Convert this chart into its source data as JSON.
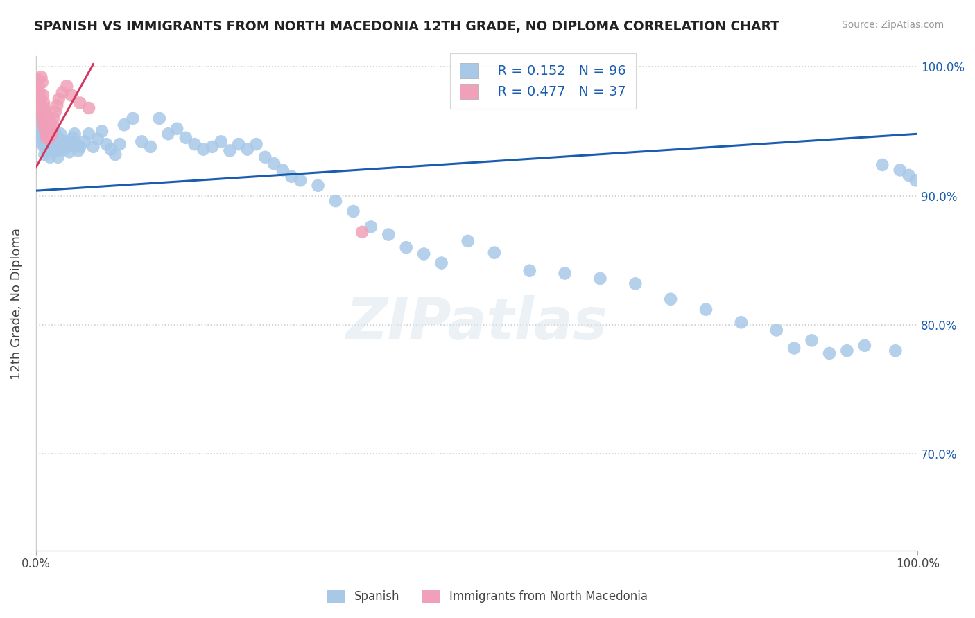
{
  "title": "SPANISH VS IMMIGRANTS FROM NORTH MACEDONIA 12TH GRADE, NO DIPLOMA CORRELATION CHART",
  "source": "Source: ZipAtlas.com",
  "ylabel": "12th Grade, No Diploma",
  "xlim": [
    0.0,
    1.0
  ],
  "ylim": [
    0.625,
    1.008
  ],
  "blue_R": 0.152,
  "blue_N": 96,
  "pink_R": 0.477,
  "pink_N": 37,
  "blue_color": "#a8c8e8",
  "pink_color": "#f0a0b8",
  "blue_line_color": "#1a5cb0",
  "pink_line_color": "#d03860",
  "legend_label_blue": "Spanish",
  "legend_label_pink": "Immigrants from North Macedonia",
  "watermark": "ZIPatlas",
  "grid_color": "#cccccc",
  "grid_yticks": [
    0.7,
    0.8,
    0.9,
    1.0
  ],
  "ytick_labels_right": [
    "70.0%",
    "80.0%",
    "90.0%",
    "100.0%"
  ],
  "blue_line_x": [
    0.0,
    1.0
  ],
  "blue_line_y": [
    0.904,
    0.948
  ],
  "pink_line_x": [
    0.0,
    0.065
  ],
  "pink_line_y": [
    0.922,
    1.002
  ],
  "blue_x": [
    0.002,
    0.003,
    0.004,
    0.005,
    0.006,
    0.007,
    0.008,
    0.009,
    0.01,
    0.011,
    0.012,
    0.013,
    0.014,
    0.015,
    0.016,
    0.017,
    0.018,
    0.019,
    0.02,
    0.021,
    0.022,
    0.023,
    0.024,
    0.025,
    0.026,
    0.027,
    0.028,
    0.03,
    0.032,
    0.034,
    0.036,
    0.038,
    0.04,
    0.042,
    0.044,
    0.046,
    0.048,
    0.05,
    0.055,
    0.06,
    0.065,
    0.07,
    0.075,
    0.08,
    0.085,
    0.09,
    0.095,
    0.1,
    0.11,
    0.12,
    0.13,
    0.14,
    0.15,
    0.16,
    0.17,
    0.18,
    0.19,
    0.2,
    0.21,
    0.22,
    0.23,
    0.24,
    0.25,
    0.26,
    0.27,
    0.28,
    0.29,
    0.3,
    0.32,
    0.34,
    0.36,
    0.38,
    0.4,
    0.42,
    0.44,
    0.46,
    0.49,
    0.52,
    0.56,
    0.6,
    0.64,
    0.68,
    0.72,
    0.76,
    0.8,
    0.84,
    0.88,
    0.92,
    0.96,
    0.98,
    0.99,
    0.998,
    0.86,
    0.9,
    0.94,
    0.975
  ],
  "blue_y": [
    0.95,
    0.96,
    0.948,
    0.942,
    0.955,
    0.945,
    0.95,
    0.938,
    0.932,
    0.94,
    0.936,
    0.944,
    0.938,
    0.942,
    0.93,
    0.936,
    0.942,
    0.946,
    0.94,
    0.935,
    0.942,
    0.948,
    0.938,
    0.93,
    0.935,
    0.944,
    0.948,
    0.94,
    0.936,
    0.942,
    0.938,
    0.934,
    0.942,
    0.945,
    0.948,
    0.94,
    0.935,
    0.938,
    0.942,
    0.948,
    0.938,
    0.944,
    0.95,
    0.94,
    0.936,
    0.932,
    0.94,
    0.955,
    0.96,
    0.942,
    0.938,
    0.96,
    0.948,
    0.952,
    0.945,
    0.94,
    0.936,
    0.938,
    0.942,
    0.935,
    0.94,
    0.936,
    0.94,
    0.93,
    0.925,
    0.92,
    0.915,
    0.912,
    0.908,
    0.896,
    0.888,
    0.876,
    0.87,
    0.86,
    0.855,
    0.848,
    0.865,
    0.856,
    0.842,
    0.84,
    0.836,
    0.832,
    0.82,
    0.812,
    0.802,
    0.796,
    0.788,
    0.78,
    0.924,
    0.92,
    0.916,
    0.912,
    0.782,
    0.778,
    0.784,
    0.78
  ],
  "pink_x": [
    0.002,
    0.003,
    0.004,
    0.005,
    0.005,
    0.006,
    0.006,
    0.007,
    0.007,
    0.008,
    0.008,
    0.009,
    0.009,
    0.01,
    0.01,
    0.011,
    0.011,
    0.012,
    0.012,
    0.013,
    0.014,
    0.015,
    0.015,
    0.016,
    0.017,
    0.018,
    0.019,
    0.02,
    0.022,
    0.024,
    0.026,
    0.03,
    0.035,
    0.04,
    0.05,
    0.06,
    0.37
  ],
  "pink_y": [
    0.99,
    0.985,
    0.98,
    0.975,
    0.97,
    0.992,
    0.965,
    0.988,
    0.962,
    0.978,
    0.958,
    0.972,
    0.955,
    0.968,
    0.952,
    0.965,
    0.948,
    0.962,
    0.945,
    0.958,
    0.952,
    0.96,
    0.945,
    0.955,
    0.95,
    0.948,
    0.955,
    0.96,
    0.965,
    0.97,
    0.975,
    0.98,
    0.985,
    0.978,
    0.972,
    0.968,
    0.872
  ]
}
